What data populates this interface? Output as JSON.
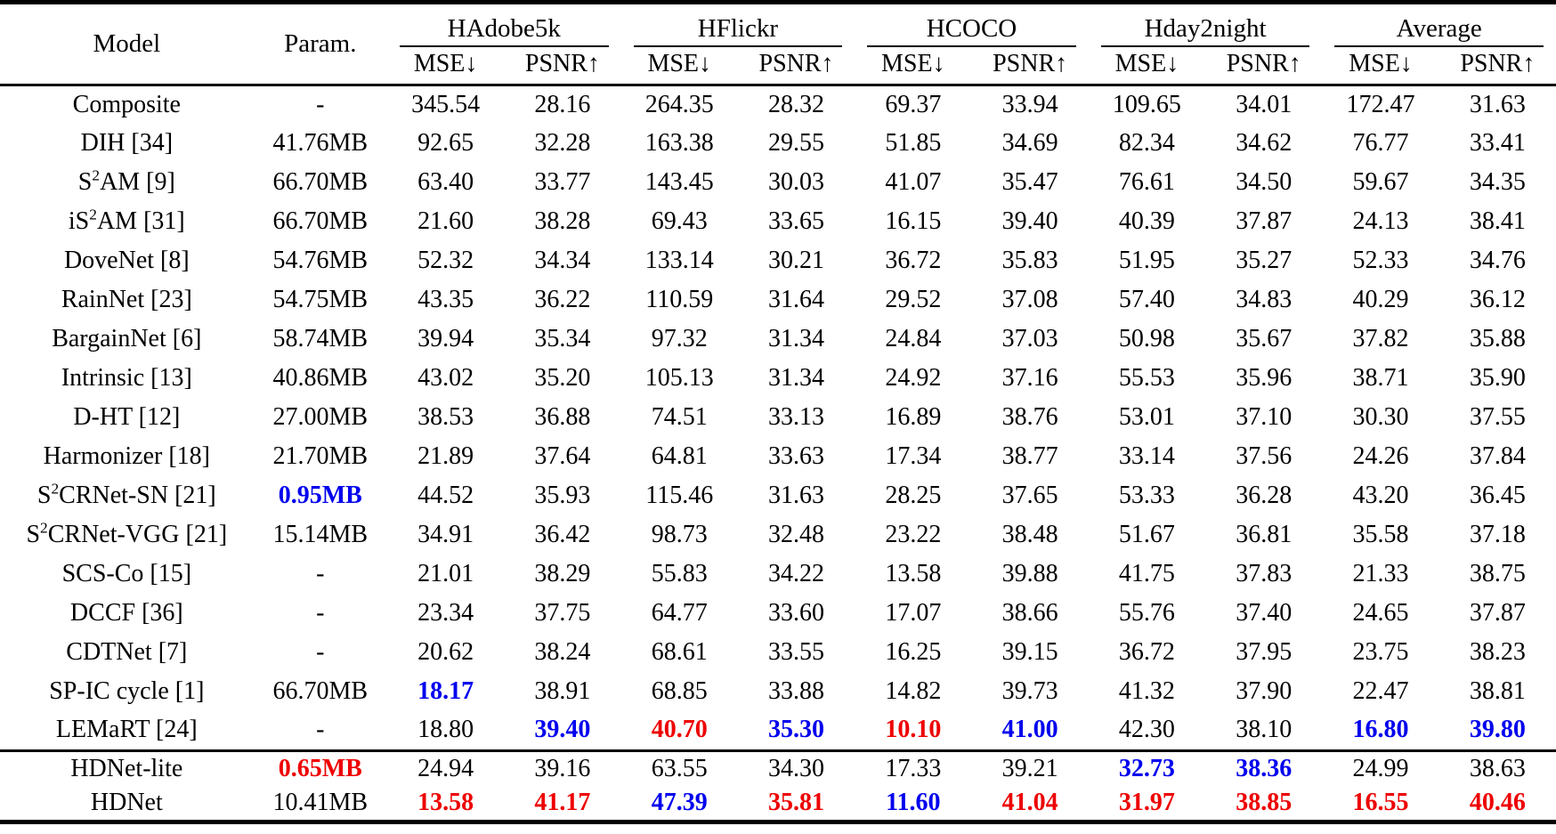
{
  "colors": {
    "best_value_red": "#ee0000",
    "second_best_blue": "#0000ee",
    "text": "#000000",
    "background": "#ffffff"
  },
  "table": {
    "model_header": "Model",
    "param_header": "Param.",
    "groups": [
      "HAdobe5k",
      "HFlickr",
      "HCOCO",
      "Hday2night",
      "Average"
    ],
    "metric_headers": [
      "MSE↓",
      "PSNR↑"
    ],
    "rows": [
      {
        "model": "Composite",
        "param": "-",
        "values": [
          "345.54",
          "28.16",
          "264.35",
          "28.32",
          "69.37",
          "33.94",
          "109.65",
          "34.01",
          "172.47",
          "31.63"
        ]
      },
      {
        "model": "DIH [34]",
        "param": "41.76MB",
        "values": [
          "92.65",
          "32.28",
          "163.38",
          "29.55",
          "51.85",
          "34.69",
          "82.34",
          "34.62",
          "76.77",
          "33.41"
        ]
      },
      {
        "model": "S^2AM [9]",
        "param": "66.70MB",
        "values": [
          "63.40",
          "33.77",
          "143.45",
          "30.03",
          "41.07",
          "35.47",
          "76.61",
          "34.50",
          "59.67",
          "34.35"
        ]
      },
      {
        "model": "iS^2AM [31]",
        "param": "66.70MB",
        "values": [
          "21.60",
          "38.28",
          "69.43",
          "33.65",
          "16.15",
          "39.40",
          "40.39",
          "37.87",
          "24.13",
          "38.41"
        ]
      },
      {
        "model": "DoveNet [8]",
        "param": "54.76MB",
        "values": [
          "52.32",
          "34.34",
          "133.14",
          "30.21",
          "36.72",
          "35.83",
          "51.95",
          "35.27",
          "52.33",
          "34.76"
        ]
      },
      {
        "model": "RainNet [23]",
        "param": "54.75MB",
        "values": [
          "43.35",
          "36.22",
          "110.59",
          "31.64",
          "29.52",
          "37.08",
          "57.40",
          "34.83",
          "40.29",
          "36.12"
        ]
      },
      {
        "model": "BargainNet [6]",
        "param": "58.74MB",
        "values": [
          "39.94",
          "35.34",
          "97.32",
          "31.34",
          "24.84",
          "37.03",
          "50.98",
          "35.67",
          "37.82",
          "35.88"
        ]
      },
      {
        "model": "Intrinsic [13]",
        "param": "40.86MB",
        "values": [
          "43.02",
          "35.20",
          "105.13",
          "31.34",
          "24.92",
          "37.16",
          "55.53",
          "35.96",
          "38.71",
          "35.90"
        ]
      },
      {
        "model": "D-HT [12]",
        "param": "27.00MB",
        "values": [
          "38.53",
          "36.88",
          "74.51",
          "33.13",
          "16.89",
          "38.76",
          "53.01",
          "37.10",
          "30.30",
          "37.55"
        ]
      },
      {
        "model": "Harmonizer [18]",
        "param": "21.70MB",
        "values": [
          "21.89",
          "37.64",
          "64.81",
          "33.63",
          "17.34",
          "38.77",
          "33.14",
          "37.56",
          "24.26",
          "37.84"
        ]
      },
      {
        "model": "S^2CRNet-SN [21]",
        "param": "0.95MB",
        "param_color": "blue",
        "values": [
          "44.52",
          "35.93",
          "115.46",
          "31.63",
          "28.25",
          "37.65",
          "53.33",
          "36.28",
          "43.20",
          "36.45"
        ]
      },
      {
        "model": "S^2CRNet-VGG [21]",
        "param": "15.14MB",
        "values": [
          "34.91",
          "36.42",
          "98.73",
          "32.48",
          "23.22",
          "38.48",
          "51.67",
          "36.81",
          "35.58",
          "37.18"
        ]
      },
      {
        "model": "SCS-Co [15]",
        "param": "-",
        "values": [
          "21.01",
          "38.29",
          "55.83",
          "34.22",
          "13.58",
          "39.88",
          "41.75",
          "37.83",
          "21.33",
          "38.75"
        ]
      },
      {
        "model": "DCCF [36]",
        "param": "-",
        "values": [
          "23.34",
          "37.75",
          "64.77",
          "33.60",
          "17.07",
          "38.66",
          "55.76",
          "37.40",
          "24.65",
          "37.87"
        ]
      },
      {
        "model": "CDTNet [7]",
        "param": "-",
        "values": [
          "20.62",
          "38.24",
          "68.61",
          "33.55",
          "16.25",
          "39.15",
          "36.72",
          "37.95",
          "23.75",
          "38.23"
        ]
      },
      {
        "model": "SP-IC cycle [1]",
        "param": "66.70MB",
        "values": [
          "18.17",
          "38.91",
          "68.85",
          "33.88",
          "14.82",
          "39.73",
          "41.32",
          "37.90",
          "22.47",
          "38.81"
        ],
        "colors": [
          "blue",
          null,
          null,
          null,
          null,
          null,
          null,
          null,
          null,
          null
        ]
      },
      {
        "model": "LEMaRT [24]",
        "param": "-",
        "values": [
          "18.80",
          "39.40",
          "40.70",
          "35.30",
          "10.10",
          "41.00",
          "42.30",
          "38.10",
          "16.80",
          "39.80"
        ],
        "colors": [
          null,
          "blue",
          "red",
          "blue",
          "red",
          "blue",
          null,
          null,
          "blue",
          "blue"
        ]
      }
    ],
    "footer_rows": [
      {
        "model": "HDNet-lite",
        "param": "0.65MB",
        "param_color": "red",
        "values": [
          "24.94",
          "39.16",
          "63.55",
          "34.30",
          "17.33",
          "39.21",
          "32.73",
          "38.36",
          "24.99",
          "38.63"
        ],
        "colors": [
          null,
          null,
          null,
          null,
          null,
          null,
          "blue",
          "blue",
          null,
          null
        ]
      },
      {
        "model": "HDNet",
        "param": "10.41MB",
        "values": [
          "13.58",
          "41.17",
          "47.39",
          "35.81",
          "11.60",
          "41.04",
          "31.97",
          "38.85",
          "16.55",
          "40.46"
        ],
        "colors": [
          "red",
          "red",
          "blue",
          "red",
          "blue",
          "red",
          "red",
          "red",
          "red",
          "red"
        ]
      }
    ]
  }
}
